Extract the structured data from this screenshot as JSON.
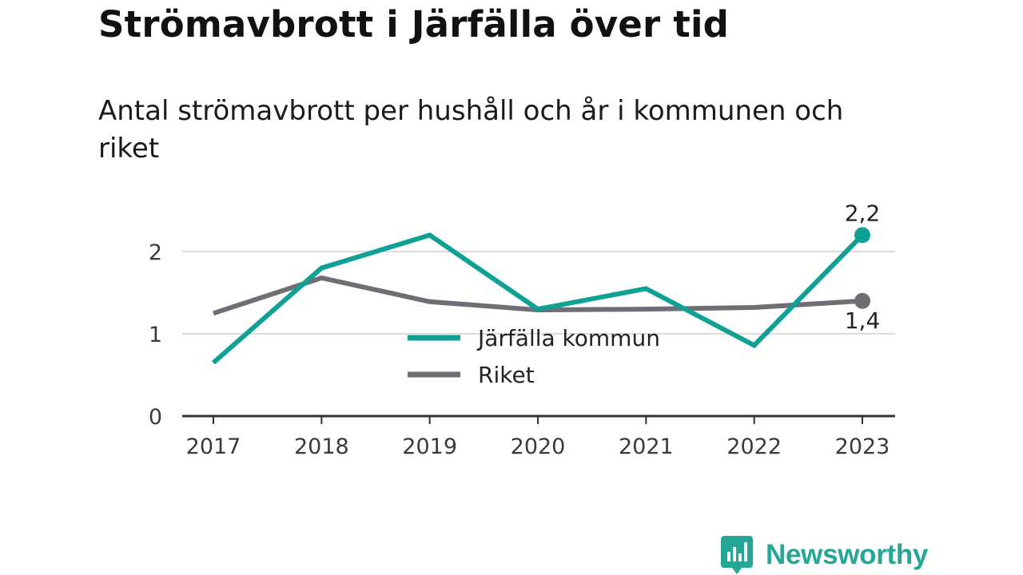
{
  "header": {
    "title": "Strömavbrott i Järfälla över tid",
    "subtitle": "Antal strömavbrott per hushåll och år i kommunen och riket"
  },
  "brand": {
    "name": "Newsworthy",
    "color": "#25a697",
    "icon": "bar-chart-logo-icon"
  },
  "chart_data": {
    "type": "line",
    "x": [
      "2017",
      "2018",
      "2019",
      "2020",
      "2021",
      "2022",
      "2023"
    ],
    "series": [
      {
        "name": "Järfälla kommun",
        "color": "#0fa195",
        "values": [
          0.65,
          1.8,
          2.2,
          1.3,
          1.55,
          0.86,
          2.2
        ]
      },
      {
        "name": "Riket",
        "color": "#6f6e75",
        "values": [
          1.25,
          1.68,
          1.39,
          1.29,
          1.3,
          1.32,
          1.4
        ]
      }
    ],
    "yticks": [
      {
        "value": 0,
        "label": "0"
      },
      {
        "value": 1,
        "label": "1"
      },
      {
        "value": 2,
        "label": "2"
      }
    ],
    "ylim": [
      0,
      2.45
    ],
    "end_labels": [
      "2,2",
      "1,4"
    ],
    "grid": true,
    "legend_position": "center"
  }
}
